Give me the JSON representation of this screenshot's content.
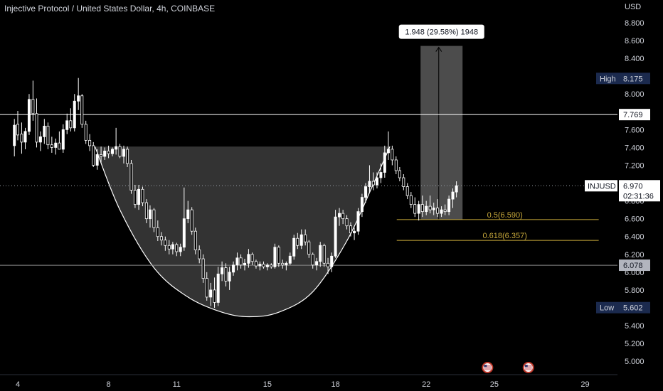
{
  "header": {
    "title": "Injective Protocol / United States Dollar, 4h, COINBASE",
    "currency": "USD"
  },
  "chart_data": {
    "type": "candlestick",
    "symbol": "INJUSD",
    "ylim": [
      4.9,
      9.05
    ],
    "xlim": [
      3.8,
      29.7
    ],
    "y_ticks": [
      "5.000",
      "5.200",
      "5.400",
      "5.600",
      "5.800",
      "6.000",
      "6.200",
      "6.400",
      "6.600",
      "6.800",
      "7.000",
      "7.200",
      "7.400",
      "7.600",
      "7.800",
      "8.000",
      "8.200",
      "8.400",
      "8.600",
      "8.800"
    ],
    "y_tick_values": [
      5.0,
      5.2,
      5.4,
      5.6,
      5.8,
      6.0,
      6.2,
      6.4,
      6.6,
      6.8,
      7.0,
      7.2,
      7.4,
      7.6,
      7.8,
      8.0,
      8.2,
      8.4,
      8.6,
      8.8
    ],
    "x_ticks": [
      {
        "label": "4",
        "value": 4
      },
      {
        "label": "8",
        "value": 8
      },
      {
        "label": "11",
        "value": 11
      },
      {
        "label": "15",
        "value": 15
      },
      {
        "label": "18",
        "value": 18
      },
      {
        "label": "22",
        "value": 22
      },
      {
        "label": "25",
        "value": 25
      },
      {
        "label": "29",
        "value": 29
      }
    ],
    "price_labels": [
      {
        "label": "High",
        "value": "8.175",
        "y": 8.175,
        "style": "high"
      },
      {
        "label": "",
        "value": "7.769",
        "y": 7.769,
        "style": "white"
      },
      {
        "label": "INJUSD",
        "value": "6.970",
        "extra": "02:31:36",
        "y": 6.97,
        "style": "current"
      },
      {
        "label": "",
        "value": "6.078",
        "y": 6.078,
        "style": "gray"
      },
      {
        "label": "Low",
        "value": "5.602",
        "y": 5.602,
        "style": "low"
      }
    ],
    "horizontal_lines": [
      {
        "y": 7.769,
        "style": "solid-white"
      },
      {
        "y": 6.078,
        "style": "solid-gray"
      },
      {
        "y": 6.97,
        "style": "dotted"
      }
    ],
    "fib_levels": [
      {
        "label": "0.5(6.590)",
        "y": 6.59,
        "x_start": 20.7,
        "x_end": 29.6
      },
      {
        "label": "0.618(6.357)",
        "y": 6.357,
        "x_start": 20.7,
        "x_end": 29.6
      }
    ],
    "measure": {
      "label": "1.948 (29.58%) 1948",
      "x_start": 21.75,
      "x_end": 23.6,
      "y_low": 6.59,
      "y_high": 8.54,
      "arrow_x": 22.55
    },
    "cup_pattern": {
      "rim_y": 7.41,
      "x_left": 7.4,
      "x_right": 20.4,
      "curve": [
        [
          7.4,
          7.41
        ],
        [
          8.5,
          6.7
        ],
        [
          10.0,
          6.05
        ],
        [
          11.5,
          5.72
        ],
        [
          13.0,
          5.55
        ],
        [
          14.2,
          5.5
        ],
        [
          15.5,
          5.55
        ],
        [
          17.0,
          5.78
        ],
        [
          18.5,
          6.35
        ],
        [
          19.6,
          6.95
        ],
        [
          20.4,
          7.41
        ]
      ]
    },
    "event_markers": [
      {
        "name": "us-flag-event",
        "x": 24.7,
        "y": 5.05
      },
      {
        "name": "us-flag-event",
        "x": 26.5,
        "y": 5.05
      }
    ],
    "colors": {
      "background": "#000000",
      "candle": "#ffffff",
      "fib": "#c8a93b",
      "high_badge": "#1b2a4e",
      "low_badge": "#1b2a4e"
    },
    "candles": [
      {
        "x": 3.85,
        "o": 7.42,
        "h": 7.72,
        "l": 7.3,
        "c": 7.65
      },
      {
        "x": 4.0,
        "o": 7.66,
        "h": 7.81,
        "l": 7.48,
        "c": 7.54
      },
      {
        "x": 4.17,
        "o": 7.55,
        "h": 7.68,
        "l": 7.33,
        "c": 7.46
      },
      {
        "x": 4.33,
        "o": 7.46,
        "h": 7.62,
        "l": 7.38,
        "c": 7.58
      },
      {
        "x": 4.5,
        "o": 7.58,
        "h": 8.0,
        "l": 7.54,
        "c": 7.94
      },
      {
        "x": 4.67,
        "o": 7.94,
        "h": 8.15,
        "l": 7.7,
        "c": 7.78
      },
      {
        "x": 4.83,
        "o": 7.78,
        "h": 7.95,
        "l": 7.4,
        "c": 7.46
      },
      {
        "x": 5.0,
        "o": 7.46,
        "h": 7.58,
        "l": 7.36,
        "c": 7.52
      },
      {
        "x": 5.17,
        "o": 7.52,
        "h": 7.72,
        "l": 7.44,
        "c": 7.64
      },
      {
        "x": 5.33,
        "o": 7.64,
        "h": 7.68,
        "l": 7.38,
        "c": 7.43
      },
      {
        "x": 5.5,
        "o": 7.43,
        "h": 7.52,
        "l": 7.34,
        "c": 7.4
      },
      {
        "x": 5.67,
        "o": 7.4,
        "h": 7.5,
        "l": 7.32,
        "c": 7.45
      },
      {
        "x": 5.83,
        "o": 7.45,
        "h": 7.58,
        "l": 7.38,
        "c": 7.38
      },
      {
        "x": 6.0,
        "o": 7.38,
        "h": 7.66,
        "l": 7.34,
        "c": 7.6
      },
      {
        "x": 6.17,
        "o": 7.6,
        "h": 7.78,
        "l": 7.55,
        "c": 7.7
      },
      {
        "x": 6.33,
        "o": 7.7,
        "h": 7.84,
        "l": 7.58,
        "c": 7.62
      },
      {
        "x": 6.5,
        "o": 7.62,
        "h": 8.0,
        "l": 7.58,
        "c": 7.92
      },
      {
        "x": 6.67,
        "o": 7.92,
        "h": 8.18,
        "l": 7.82,
        "c": 7.98
      },
      {
        "x": 6.83,
        "o": 7.98,
        "h": 8.0,
        "l": 7.62,
        "c": 7.66
      },
      {
        "x": 7.0,
        "o": 7.66,
        "h": 7.7,
        "l": 7.44,
        "c": 7.48
      },
      {
        "x": 7.17,
        "o": 7.48,
        "h": 7.55,
        "l": 7.36,
        "c": 7.42
      },
      {
        "x": 7.33,
        "o": 7.42,
        "h": 7.46,
        "l": 7.18,
        "c": 7.2
      },
      {
        "x": 7.5,
        "o": 7.2,
        "h": 7.38,
        "l": 7.15,
        "c": 7.32
      },
      {
        "x": 7.67,
        "o": 7.32,
        "h": 7.41,
        "l": 7.22,
        "c": 7.3
      },
      {
        "x": 7.83,
        "o": 7.3,
        "h": 7.4,
        "l": 7.26,
        "c": 7.36
      },
      {
        "x": 8.0,
        "o": 7.36,
        "h": 7.42,
        "l": 7.28,
        "c": 7.33
      },
      {
        "x": 8.17,
        "o": 7.33,
        "h": 7.4,
        "l": 7.3,
        "c": 7.38
      },
      {
        "x": 8.33,
        "o": 7.38,
        "h": 7.62,
        "l": 7.32,
        "c": 7.41
      },
      {
        "x": 8.5,
        "o": 7.41,
        "h": 7.44,
        "l": 7.28,
        "c": 7.3
      },
      {
        "x": 8.67,
        "o": 7.3,
        "h": 7.42,
        "l": 7.22,
        "c": 7.38
      },
      {
        "x": 8.83,
        "o": 7.38,
        "h": 7.41,
        "l": 7.18,
        "c": 7.22
      },
      {
        "x": 9.0,
        "o": 7.22,
        "h": 7.26,
        "l": 6.88,
        "c": 6.92
      },
      {
        "x": 9.17,
        "o": 6.92,
        "h": 6.98,
        "l": 6.72,
        "c": 6.76
      },
      {
        "x": 9.33,
        "o": 6.76,
        "h": 6.98,
        "l": 6.7,
        "c": 6.93
      },
      {
        "x": 9.5,
        "o": 6.93,
        "h": 6.96,
        "l": 6.74,
        "c": 6.78
      },
      {
        "x": 9.67,
        "o": 6.78,
        "h": 6.82,
        "l": 6.55,
        "c": 6.6
      },
      {
        "x": 9.83,
        "o": 6.6,
        "h": 6.75,
        "l": 6.5,
        "c": 6.7
      },
      {
        "x": 10.0,
        "o": 6.7,
        "h": 6.72,
        "l": 6.45,
        "c": 6.5
      },
      {
        "x": 10.17,
        "o": 6.5,
        "h": 6.58,
        "l": 6.35,
        "c": 6.4
      },
      {
        "x": 10.33,
        "o": 6.4,
        "h": 6.45,
        "l": 6.3,
        "c": 6.36
      },
      {
        "x": 10.5,
        "o": 6.36,
        "h": 6.4,
        "l": 6.24,
        "c": 6.3
      },
      {
        "x": 10.67,
        "o": 6.3,
        "h": 6.36,
        "l": 6.2,
        "c": 6.26
      },
      {
        "x": 10.83,
        "o": 6.26,
        "h": 6.34,
        "l": 6.2,
        "c": 6.31
      },
      {
        "x": 11.0,
        "o": 6.31,
        "h": 6.33,
        "l": 6.18,
        "c": 6.23
      },
      {
        "x": 11.17,
        "o": 6.23,
        "h": 6.32,
        "l": 6.18,
        "c": 6.28
      },
      {
        "x": 11.33,
        "o": 6.28,
        "h": 6.95,
        "l": 6.24,
        "c": 6.6
      },
      {
        "x": 11.5,
        "o": 6.6,
        "h": 6.8,
        "l": 6.55,
        "c": 6.7
      },
      {
        "x": 11.67,
        "o": 6.7,
        "h": 6.73,
        "l": 6.42,
        "c": 6.46
      },
      {
        "x": 11.83,
        "o": 6.46,
        "h": 6.5,
        "l": 6.2,
        "c": 6.25
      },
      {
        "x": 12.0,
        "o": 6.25,
        "h": 6.3,
        "l": 6.1,
        "c": 6.15
      },
      {
        "x": 12.17,
        "o": 6.15,
        "h": 6.2,
        "l": 5.88,
        "c": 5.93
      },
      {
        "x": 12.33,
        "o": 5.93,
        "h": 6.0,
        "l": 5.68,
        "c": 5.72
      },
      {
        "x": 12.5,
        "o": 5.72,
        "h": 5.88,
        "l": 5.62,
        "c": 5.8
      },
      {
        "x": 12.67,
        "o": 5.8,
        "h": 5.94,
        "l": 5.6,
        "c": 5.66
      },
      {
        "x": 12.83,
        "o": 5.66,
        "h": 6.06,
        "l": 5.62,
        "c": 5.98
      },
      {
        "x": 13.0,
        "o": 5.98,
        "h": 6.12,
        "l": 5.9,
        "c": 6.05
      },
      {
        "x": 13.17,
        "o": 6.05,
        "h": 6.1,
        "l": 5.84,
        "c": 5.9
      },
      {
        "x": 13.33,
        "o": 5.9,
        "h": 6.06,
        "l": 5.8,
        "c": 6.0
      },
      {
        "x": 13.5,
        "o": 6.0,
        "h": 6.12,
        "l": 5.96,
        "c": 6.08
      },
      {
        "x": 13.67,
        "o": 6.08,
        "h": 6.22,
        "l": 6.02,
        "c": 6.16
      },
      {
        "x": 13.83,
        "o": 6.16,
        "h": 6.2,
        "l": 6.04,
        "c": 6.08
      },
      {
        "x": 14.0,
        "o": 6.08,
        "h": 6.15,
        "l": 6.02,
        "c": 6.1
      },
      {
        "x": 14.17,
        "o": 6.1,
        "h": 6.26,
        "l": 6.05,
        "c": 6.2
      },
      {
        "x": 14.33,
        "o": 6.2,
        "h": 6.22,
        "l": 6.08,
        "c": 6.12
      },
      {
        "x": 14.5,
        "o": 6.12,
        "h": 6.14,
        "l": 6.04,
        "c": 6.07
      },
      {
        "x": 14.67,
        "o": 6.07,
        "h": 6.12,
        "l": 6.02,
        "c": 6.09
      },
      {
        "x": 14.83,
        "o": 6.09,
        "h": 6.12,
        "l": 6.04,
        "c": 6.06
      },
      {
        "x": 15.0,
        "o": 6.06,
        "h": 6.1,
        "l": 6.02,
        "c": 6.08
      },
      {
        "x": 15.17,
        "o": 6.08,
        "h": 6.1,
        "l": 6.04,
        "c": 6.06
      },
      {
        "x": 15.33,
        "o": 6.06,
        "h": 6.32,
        "l": 6.04,
        "c": 6.28
      },
      {
        "x": 15.5,
        "o": 6.28,
        "h": 6.3,
        "l": 6.06,
        "c": 6.1
      },
      {
        "x": 15.67,
        "o": 6.1,
        "h": 6.14,
        "l": 6.04,
        "c": 6.08
      },
      {
        "x": 15.83,
        "o": 6.08,
        "h": 6.12,
        "l": 6.02,
        "c": 6.1
      },
      {
        "x": 16.0,
        "o": 6.1,
        "h": 6.22,
        "l": 6.08,
        "c": 6.18
      },
      {
        "x": 16.17,
        "o": 6.18,
        "h": 6.42,
        "l": 6.14,
        "c": 6.38
      },
      {
        "x": 16.33,
        "o": 6.38,
        "h": 6.44,
        "l": 6.26,
        "c": 6.3
      },
      {
        "x": 16.5,
        "o": 6.3,
        "h": 6.48,
        "l": 6.26,
        "c": 6.42
      },
      {
        "x": 16.67,
        "o": 6.42,
        "h": 6.48,
        "l": 6.3,
        "c": 6.34
      },
      {
        "x": 16.83,
        "o": 6.34,
        "h": 6.36,
        "l": 6.16,
        "c": 6.2
      },
      {
        "x": 17.0,
        "o": 6.2,
        "h": 6.22,
        "l": 6.04,
        "c": 6.08
      },
      {
        "x": 17.17,
        "o": 6.08,
        "h": 6.16,
        "l": 6.02,
        "c": 6.12
      },
      {
        "x": 17.33,
        "o": 6.12,
        "h": 6.34,
        "l": 6.06,
        "c": 6.3
      },
      {
        "x": 17.5,
        "o": 6.3,
        "h": 6.32,
        "l": 6.06,
        "c": 6.1
      },
      {
        "x": 17.67,
        "o": 6.1,
        "h": 6.16,
        "l": 5.98,
        "c": 6.06
      },
      {
        "x": 17.83,
        "o": 6.06,
        "h": 6.22,
        "l": 6.0,
        "c": 6.18
      },
      {
        "x": 18.0,
        "o": 6.18,
        "h": 6.7,
        "l": 6.16,
        "c": 6.62
      },
      {
        "x": 18.17,
        "o": 6.62,
        "h": 6.72,
        "l": 6.52,
        "c": 6.66
      },
      {
        "x": 18.33,
        "o": 6.66,
        "h": 6.7,
        "l": 6.54,
        "c": 6.6
      },
      {
        "x": 18.5,
        "o": 6.6,
        "h": 6.64,
        "l": 6.48,
        "c": 6.52
      },
      {
        "x": 18.67,
        "o": 6.52,
        "h": 6.56,
        "l": 6.4,
        "c": 6.44
      },
      {
        "x": 18.83,
        "o": 6.44,
        "h": 6.5,
        "l": 6.36,
        "c": 6.46
      },
      {
        "x": 19.0,
        "o": 6.46,
        "h": 6.72,
        "l": 6.42,
        "c": 6.68
      },
      {
        "x": 19.17,
        "o": 6.68,
        "h": 6.88,
        "l": 6.62,
        "c": 6.84
      },
      {
        "x": 19.33,
        "o": 6.84,
        "h": 7.0,
        "l": 6.78,
        "c": 6.96
      },
      {
        "x": 19.5,
        "o": 6.96,
        "h": 7.2,
        "l": 6.9,
        "c": 7.02
      },
      {
        "x": 19.67,
        "o": 7.02,
        "h": 7.12,
        "l": 6.92,
        "c": 6.98
      },
      {
        "x": 19.83,
        "o": 6.98,
        "h": 7.12,
        "l": 6.94,
        "c": 7.06
      },
      {
        "x": 20.0,
        "o": 7.06,
        "h": 7.22,
        "l": 7.0,
        "c": 7.12
      },
      {
        "x": 20.17,
        "o": 7.12,
        "h": 7.42,
        "l": 7.06,
        "c": 7.34
      },
      {
        "x": 20.33,
        "o": 7.34,
        "h": 7.58,
        "l": 7.26,
        "c": 7.38
      },
      {
        "x": 20.5,
        "o": 7.38,
        "h": 7.42,
        "l": 7.2,
        "c": 7.26
      },
      {
        "x": 20.67,
        "o": 7.26,
        "h": 7.3,
        "l": 7.1,
        "c": 7.14
      },
      {
        "x": 20.83,
        "o": 7.14,
        "h": 7.18,
        "l": 7.02,
        "c": 7.06
      },
      {
        "x": 21.0,
        "o": 7.06,
        "h": 7.1,
        "l": 6.92,
        "c": 6.96
      },
      {
        "x": 21.17,
        "o": 6.96,
        "h": 7.0,
        "l": 6.82,
        "c": 6.86
      },
      {
        "x": 21.33,
        "o": 6.86,
        "h": 6.9,
        "l": 6.72,
        "c": 6.76
      },
      {
        "x": 21.5,
        "o": 6.76,
        "h": 6.84,
        "l": 6.62,
        "c": 6.66
      },
      {
        "x": 21.67,
        "o": 6.66,
        "h": 6.8,
        "l": 6.58,
        "c": 6.76
      },
      {
        "x": 21.83,
        "o": 6.76,
        "h": 6.86,
        "l": 6.62,
        "c": 6.68
      },
      {
        "x": 22.0,
        "o": 6.68,
        "h": 6.8,
        "l": 6.64,
        "c": 6.74
      },
      {
        "x": 22.17,
        "o": 6.74,
        "h": 6.86,
        "l": 6.66,
        "c": 6.7
      },
      {
        "x": 22.33,
        "o": 6.7,
        "h": 6.78,
        "l": 6.64,
        "c": 6.72
      },
      {
        "x": 22.5,
        "o": 6.72,
        "h": 6.82,
        "l": 6.62,
        "c": 6.66
      },
      {
        "x": 22.67,
        "o": 6.66,
        "h": 6.74,
        "l": 6.62,
        "c": 6.7
      },
      {
        "x": 22.83,
        "o": 6.7,
        "h": 6.76,
        "l": 6.64,
        "c": 6.68
      },
      {
        "x": 23.0,
        "o": 6.68,
        "h": 6.86,
        "l": 6.64,
        "c": 6.82
      },
      {
        "x": 23.17,
        "o": 6.82,
        "h": 6.94,
        "l": 6.72,
        "c": 6.9
      },
      {
        "x": 23.33,
        "o": 6.9,
        "h": 7.02,
        "l": 6.84,
        "c": 6.97
      }
    ]
  }
}
